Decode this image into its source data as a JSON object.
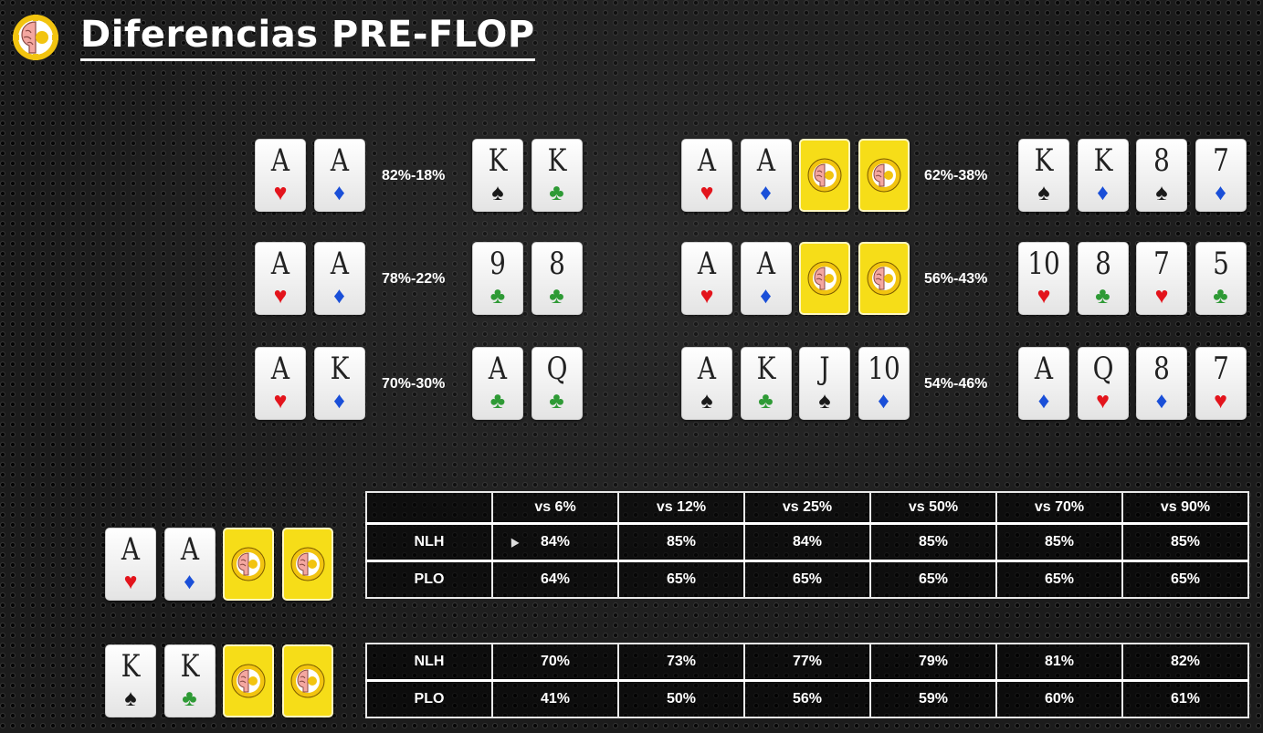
{
  "title": "Diferencias PRE-FLOP",
  "colors": {
    "red": "#e3141c",
    "blue": "#1a4fd8",
    "green": "#2e9a35",
    "black": "#1a1a1a",
    "hidden_card": "#f6dd18"
  },
  "matchups": [
    {
      "equity": "82%-18%",
      "hand1": [
        [
          "A",
          "heart"
        ],
        [
          "A",
          "diamond"
        ]
      ],
      "hand2": [
        [
          "K",
          "spade"
        ],
        [
          "K",
          "club"
        ]
      ]
    },
    {
      "equity": "78%-22%",
      "hand1": [
        [
          "A",
          "heart"
        ],
        [
          "A",
          "diamond"
        ]
      ],
      "hand2": [
        [
          "9",
          "club"
        ],
        [
          "8",
          "club"
        ]
      ]
    },
    {
      "equity": "70%-30%",
      "hand1": [
        [
          "A",
          "heart"
        ],
        [
          "K",
          "diamond"
        ]
      ],
      "hand2": [
        [
          "A",
          "club"
        ],
        [
          "Q",
          "club"
        ]
      ]
    },
    {
      "equity": "62%-38%",
      "hand1": [
        [
          "A",
          "heart"
        ],
        [
          "A",
          "diamond"
        ],
        [
          "logo",
          "hidden"
        ],
        [
          "logo",
          "hidden"
        ]
      ],
      "hand2": [
        [
          "K",
          "spade"
        ],
        [
          "K",
          "diamond"
        ],
        [
          "8",
          "spade"
        ],
        [
          "7",
          "diamond"
        ]
      ]
    },
    {
      "equity": "56%-43%",
      "hand1": [
        [
          "A",
          "heart"
        ],
        [
          "A",
          "diamond"
        ],
        [
          "logo",
          "hidden"
        ],
        [
          "logo",
          "hidden"
        ]
      ],
      "hand2": [
        [
          "10",
          "heart"
        ],
        [
          "8",
          "club"
        ],
        [
          "7",
          "heart"
        ],
        [
          "5",
          "club"
        ]
      ]
    },
    {
      "equity": "54%-46%",
      "hand1": [
        [
          "A",
          "spade"
        ],
        [
          "K",
          "club"
        ],
        [
          "J",
          "spade"
        ],
        [
          "10",
          "diamond"
        ]
      ],
      "hand2": [
        [
          "A",
          "diamond"
        ],
        [
          "Q",
          "heart"
        ],
        [
          "8",
          "diamond"
        ],
        [
          "7",
          "heart"
        ]
      ]
    }
  ],
  "table_headers": [
    "",
    "vs 6%",
    "vs 12%",
    "vs 25%",
    "vs 50%",
    "vs 70%",
    "vs 90%"
  ],
  "tables": [
    {
      "hand": [
        [
          "A",
          "heart"
        ],
        [
          "A",
          "diamond"
        ],
        [
          "logo",
          "hidden"
        ],
        [
          "logo",
          "hidden"
        ]
      ],
      "rows": [
        {
          "label": "NLH",
          "values": [
            "84%",
            "85%",
            "84%",
            "85%",
            "85%",
            "85%"
          ]
        },
        {
          "label": "PLO",
          "values": [
            "64%",
            "65%",
            "65%",
            "65%",
            "65%",
            "65%"
          ]
        }
      ]
    },
    {
      "hand": [
        [
          "K",
          "spade"
        ],
        [
          "K",
          "club"
        ],
        [
          "logo",
          "hidden"
        ],
        [
          "logo",
          "hidden"
        ]
      ],
      "rows": [
        {
          "label": "NLH",
          "values": [
            "70%",
            "73%",
            "77%",
            "79%",
            "81%",
            "82%"
          ]
        },
        {
          "label": "PLO",
          "values": [
            "41%",
            "50%",
            "56%",
            "59%",
            "60%",
            "61%"
          ]
        }
      ]
    }
  ]
}
